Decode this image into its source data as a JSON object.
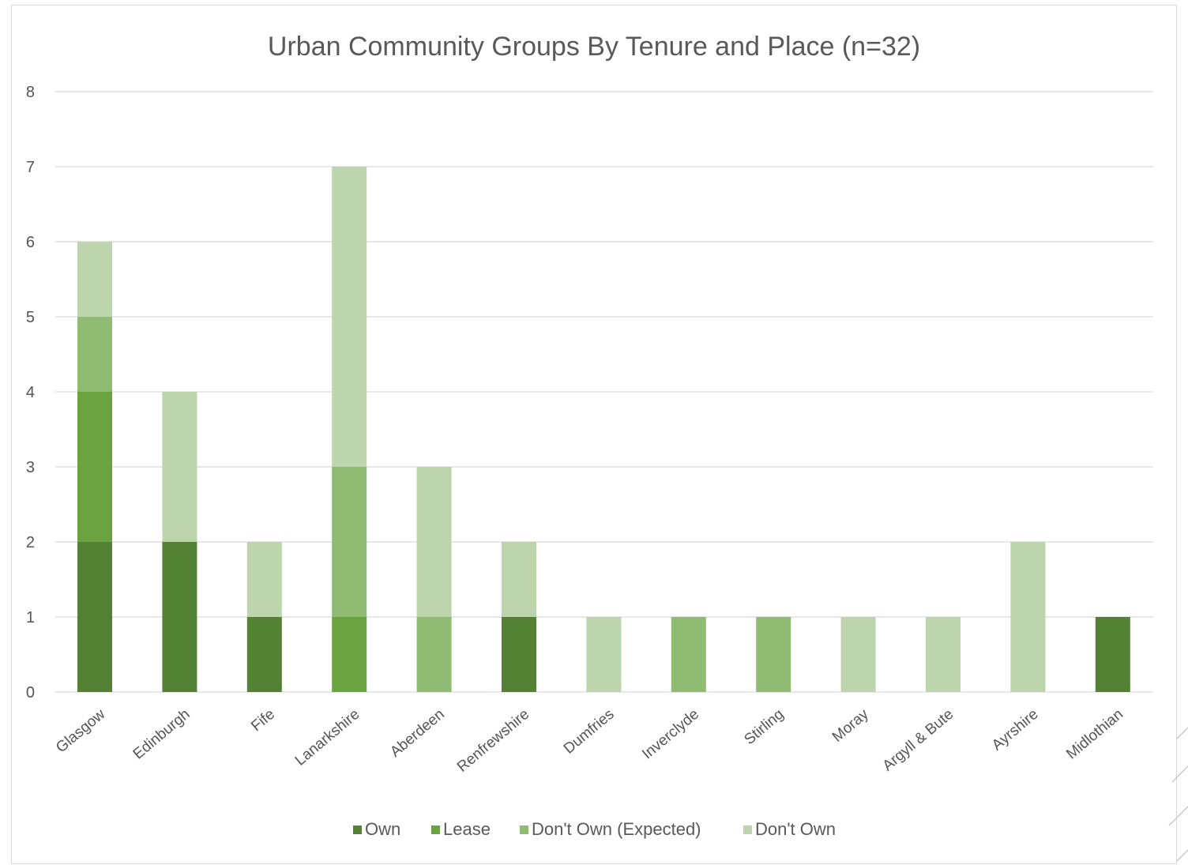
{
  "chart_data": {
    "type": "bar",
    "stacked": true,
    "title": "Urban Community Groups By Tenure and Place (n=32)",
    "xlabel": "",
    "ylabel": "",
    "ylim": [
      0,
      8
    ],
    "yticks": [
      0,
      1,
      2,
      3,
      4,
      5,
      6,
      7,
      8
    ],
    "grid": true,
    "legend_position": "bottom",
    "categories": [
      "Glasgow",
      "Edinburgh",
      "Fife",
      "Lanarkshire",
      "Aberdeen",
      "Renfrewshire",
      "Dumfries",
      "Inverclyde",
      "Stirling",
      "Moray",
      "Argyll & Bute",
      "Ayrshire",
      "Midlothian"
    ],
    "series": [
      {
        "name": "Own",
        "color": "#548235",
        "values": [
          2,
          2,
          1,
          0,
          0,
          1,
          0,
          0,
          0,
          0,
          0,
          0,
          1
        ]
      },
      {
        "name": "Lease",
        "color": "#6aa33f",
        "values": [
          2,
          0,
          0,
          1,
          0,
          0,
          0,
          0,
          0,
          0,
          0,
          0,
          0
        ]
      },
      {
        "name": "Don't Own (Expected)",
        "color": "#8fbb72",
        "values": [
          1,
          0,
          0,
          2,
          1,
          0,
          0,
          1,
          1,
          0,
          0,
          0,
          0
        ]
      },
      {
        "name": "Don't Own",
        "color": "#bdd5ac",
        "values": [
          1,
          2,
          1,
          4,
          2,
          1,
          1,
          0,
          0,
          1,
          1,
          2,
          0
        ]
      }
    ]
  }
}
